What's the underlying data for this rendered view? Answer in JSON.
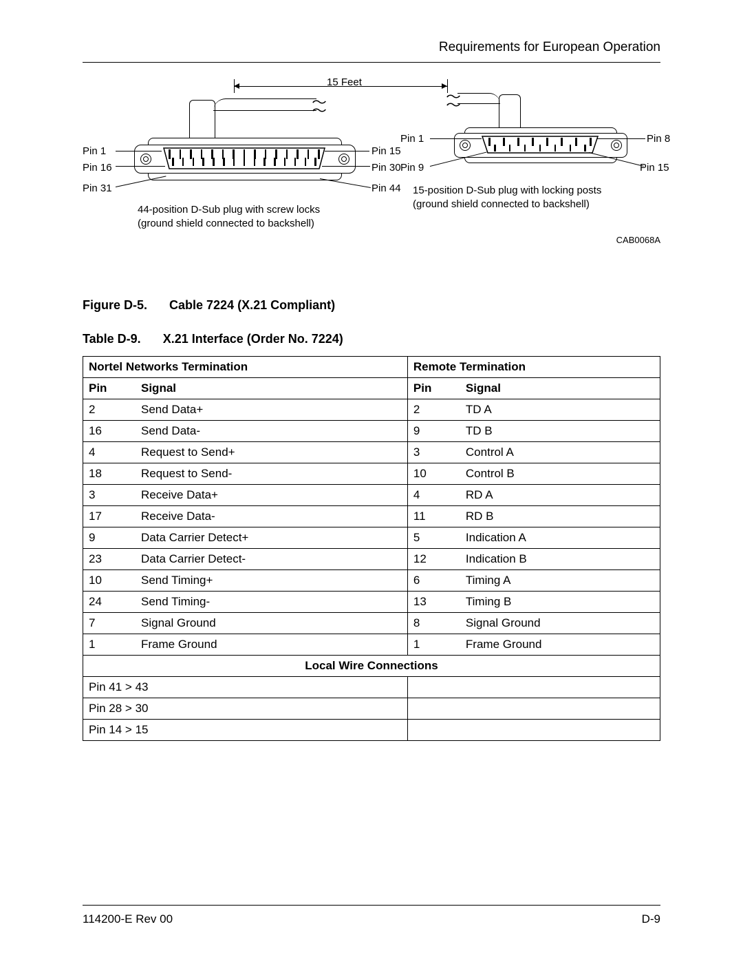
{
  "header": {
    "title": "Requirements for European Operation"
  },
  "diagram": {
    "length_label": "15 Feet",
    "left": {
      "pin_labels": {
        "p1": "Pin 1",
        "p15": "Pin 15",
        "p16": "Pin 16",
        "p30": "Pin 30",
        "p31": "Pin 31",
        "p44": "Pin 44"
      },
      "caption_l1": "44-position D-Sub plug with screw locks",
      "caption_l2": "(ground shield connected to backshell)"
    },
    "right": {
      "pin_labels": {
        "p1": "Pin 1",
        "p8": "Pin 8",
        "p9": "Pin 9",
        "p15": "Pin 15"
      },
      "caption_l1": "15-position D-Sub plug with locking posts",
      "caption_l2": "(ground shield connected to backshell)"
    },
    "code": "CAB0068A"
  },
  "figure": {
    "label": "Figure D-5.",
    "title": "Cable 7224 (X.21 Compliant)"
  },
  "table": {
    "label": "Table D-9.",
    "title": "X.21 Interface (Order No. 7224)",
    "head_left": "Nortel Networks Termination",
    "head_right": "Remote Termination",
    "col_pin": "Pin",
    "col_signal": "Signal",
    "rows": [
      {
        "lp": "2",
        "ls": "Send Data+",
        "rp": "2",
        "rs": "TD A"
      },
      {
        "lp": "16",
        "ls": "Send Data-",
        "rp": "9",
        "rs": "TD B"
      },
      {
        "lp": "4",
        "ls": "Request to Send+",
        "rp": "3",
        "rs": "Control A"
      },
      {
        "lp": "18",
        "ls": "Request to Send-",
        "rp": "10",
        "rs": "Control B"
      },
      {
        "lp": "3",
        "ls": "Receive Data+",
        "rp": "4",
        "rs": "RD A"
      },
      {
        "lp": "17",
        "ls": "Receive Data-",
        "rp": "11",
        "rs": "RD B"
      },
      {
        "lp": "9",
        "ls": "Data Carrier Detect+",
        "rp": "5",
        "rs": "Indication A"
      },
      {
        "lp": "23",
        "ls": "Data Carrier Detect-",
        "rp": "12",
        "rs": "Indication B"
      },
      {
        "lp": "10",
        "ls": "Send Timing+",
        "rp": "6",
        "rs": "Timing A"
      },
      {
        "lp": "24",
        "ls": "Send Timing-",
        "rp": "13",
        "rs": "Timing B"
      },
      {
        "lp": "7",
        "ls": "Signal Ground",
        "rp": "8",
        "rs": "Signal Ground"
      },
      {
        "lp": "1",
        "ls": "Frame Ground",
        "rp": "1",
        "rs": "Frame Ground"
      }
    ],
    "local_head": "Local Wire Connections",
    "local_rows": [
      "Pin 41 > 43",
      "Pin 28 > 30",
      "Pin 14 > 15"
    ]
  },
  "footer": {
    "left": "114200-E Rev 00",
    "right": "D-9"
  }
}
